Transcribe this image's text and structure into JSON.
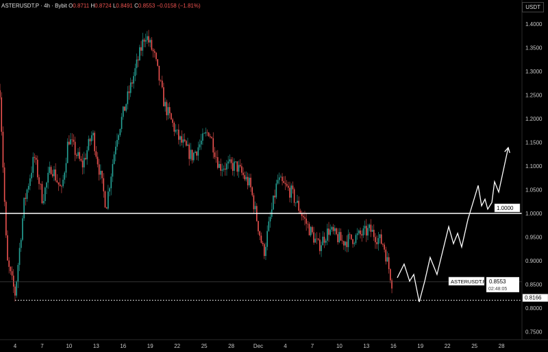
{
  "legend": {
    "symbol": "ASTERUSDT.P · 4h · Bybit",
    "o_label": "O",
    "o": "0.8711",
    "h_label": "H",
    "h": "0.8724",
    "l_label": "L",
    "l": "0.8491",
    "c_label": "C",
    "c": "0.8553",
    "change": "−0.0158 (−1.81%)"
  },
  "currency": "USDT",
  "price_tag": {
    "symbol": "ASTERUSDT.P",
    "price": "0.8553",
    "countdown": "02:48:05"
  },
  "level_tags": {
    "resistance": "1.0000",
    "low": "0.8166"
  },
  "colors": {
    "up": "#26a69a",
    "down": "#ef5350",
    "background": "#000000",
    "projection": "#ffffff"
  },
  "chart_data": {
    "type": "candlestick",
    "timeframe": "4h",
    "ylim": [
      0.72,
      1.44
    ],
    "y_ticks": [
      "1.4000",
      "1.3500",
      "1.3000",
      "1.2500",
      "1.2000",
      "1.1500",
      "1.1000",
      "1.0500",
      "1.0000",
      "0.9500",
      "0.9000",
      "0.8500",
      "0.8000",
      "0.7500"
    ],
    "x_ticks": [
      {
        "day": 0,
        "label": "4"
      },
      {
        "day": 3,
        "label": "7"
      },
      {
        "day": 6,
        "label": "10"
      },
      {
        "day": 9,
        "label": "13"
      },
      {
        "day": 12,
        "label": "16"
      },
      {
        "day": 15,
        "label": "19"
      },
      {
        "day": 18,
        "label": "22"
      },
      {
        "day": 21,
        "label": "25"
      },
      {
        "day": 24,
        "label": "28"
      },
      {
        "day": 27,
        "label": "Dec"
      },
      {
        "day": 30,
        "label": "4"
      },
      {
        "day": 33,
        "label": "7"
      },
      {
        "day": 36,
        "label": "10"
      },
      {
        "day": 39,
        "label": "13"
      },
      {
        "day": 42,
        "label": "16"
      },
      {
        "day": 45,
        "label": "19"
      },
      {
        "day": 48,
        "label": "22"
      },
      {
        "day": 51,
        "label": "25"
      },
      {
        "day": 54,
        "label": "28"
      }
    ],
    "price_path_approx": [
      [
        -1.67,
        1.26
      ],
      [
        -0.91,
        0.9
      ],
      [
        0,
        0.83
      ],
      [
        0.99,
        1.02
      ],
      [
        2.13,
        1.12
      ],
      [
        3.04,
        1.03
      ],
      [
        4.03,
        1.1
      ],
      [
        5.17,
        1.045
      ],
      [
        5.93,
        1.16
      ],
      [
        7.45,
        1.1
      ],
      [
        8.59,
        1.17
      ],
      [
        10.11,
        1.015
      ],
      [
        11.25,
        1.16
      ],
      [
        13.16,
        1.29
      ],
      [
        14.45,
        1.38
      ],
      [
        15.44,
        1.335
      ],
      [
        16.58,
        1.23
      ],
      [
        18.1,
        1.16
      ],
      [
        19.62,
        1.12
      ],
      [
        21.52,
        1.175
      ],
      [
        22.66,
        1.1
      ],
      [
        24.56,
        1.1
      ],
      [
        26.08,
        1.06
      ],
      [
        27.6,
        0.915
      ],
      [
        29.13,
        1.07
      ],
      [
        30.65,
        1.045
      ],
      [
        32.17,
        0.985
      ],
      [
        33.69,
        0.93
      ],
      [
        34.83,
        0.965
      ],
      [
        36.35,
        0.94
      ],
      [
        37.87,
        0.95
      ],
      [
        39.39,
        0.965
      ],
      [
        40.91,
        0.935
      ],
      [
        41.83,
        0.855
      ]
    ],
    "projection": [
      [
        42.43,
        0.864
      ],
      [
        43.19,
        0.893
      ],
      [
        43.8,
        0.857
      ],
      [
        44.26,
        0.871
      ],
      [
        44.87,
        0.813
      ],
      [
        45.48,
        0.857
      ],
      [
        46.08,
        0.907
      ],
      [
        46.84,
        0.871
      ],
      [
        48.14,
        0.972
      ],
      [
        48.67,
        0.936
      ],
      [
        49.13,
        0.958
      ],
      [
        49.58,
        0.929
      ],
      [
        50.27,
        0.987
      ],
      [
        51.41,
        1.059
      ],
      [
        51.79,
        1.016
      ],
      [
        52.17,
        1.03
      ],
      [
        52.47,
        1.009
      ],
      [
        52.93,
        1.023
      ],
      [
        53.23,
        1.067
      ],
      [
        53.69,
        1.045
      ],
      [
        54.75,
        1.139
      ]
    ],
    "horizontal_levels": [
      1.0,
      0.8166,
      0.8553
    ]
  }
}
